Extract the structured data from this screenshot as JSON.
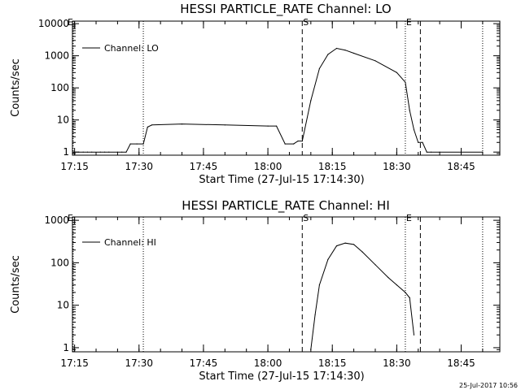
{
  "chart_data": [
    {
      "type": "line",
      "title": "HESSI PARTICLE_RATE Channel: LO",
      "xlabel": "Start Time (27-Jul-15 17:14:30)",
      "ylabel": "Counts/sec",
      "y_scale": "log",
      "xlim": [
        "17:14:30",
        "18:54:00"
      ],
      "ylim": [
        0.8,
        12000
      ],
      "x_ticks": [
        "17:15",
        "17:30",
        "17:45",
        "18:00",
        "18:15",
        "18:30",
        "18:45"
      ],
      "y_ticks": [
        "1",
        "10",
        "100",
        "1000",
        "10000"
      ],
      "legend": {
        "position": "top-left",
        "entries": [
          "Channel: LO"
        ]
      },
      "markers": [
        {
          "label": "S",
          "time": "18:08",
          "style": "dashed"
        },
        {
          "label": "E",
          "time": "18:32",
          "style": "dotted"
        }
      ],
      "extra_lines": [
        {
          "time": "17:14:40",
          "style": "dotted"
        },
        {
          "time": "17:31",
          "style": "dotted"
        },
        {
          "time": "18:35:30",
          "style": "dashed"
        },
        {
          "time": "18:50",
          "style": "dotted"
        }
      ],
      "series": [
        {
          "name": "Channel: LO",
          "x": [
            "17:14:40",
            "17:16",
            "17:17",
            "17:18",
            "17:19",
            "17:21",
            "17:22",
            "17:23",
            "17:25",
            "17:26",
            "17:27",
            "17:28",
            "17:29:30",
            "17:31",
            "17:32",
            "17:33",
            "17:40",
            "17:50",
            "18:00",
            "18:02",
            "18:04",
            "18:06",
            "18:07",
            "18:08",
            "18:10",
            "18:12",
            "18:14",
            "18:16",
            "18:18",
            "18:20",
            "18:25",
            "18:30",
            "18:32",
            "18:33",
            "18:34",
            "18:35",
            "18:36",
            "18:37",
            "18:38",
            "18:40",
            "18:45",
            "18:50"
          ],
          "y": [
            1,
            1,
            1,
            1,
            1,
            1,
            1,
            1,
            1,
            1,
            1,
            1.8,
            1.8,
            1.8,
            6,
            7,
            7.5,
            7,
            6.5,
            6.5,
            1.8,
            1.8,
            2.2,
            2.2,
            40,
            400,
            1100,
            1700,
            1500,
            1200,
            700,
            300,
            150,
            20,
            5,
            2,
            2,
            1,
            1,
            1,
            1,
            1
          ]
        }
      ]
    },
    {
      "type": "line",
      "title": "HESSI PARTICLE_RATE Channel: HI",
      "xlabel": "Start Time (27-Jul-15 17:14:30)",
      "ylabel": "Counts/sec",
      "y_scale": "log",
      "xlim": [
        "17:14:30",
        "18:54:00"
      ],
      "ylim": [
        0.8,
        1200
      ],
      "x_ticks": [
        "17:15",
        "17:30",
        "17:45",
        "18:00",
        "18:15",
        "18:30",
        "18:45"
      ],
      "y_ticks": [
        "1",
        "10",
        "100",
        "1000"
      ],
      "legend": {
        "position": "top-left",
        "entries": [
          "Channel: HI"
        ]
      },
      "markers": [
        {
          "label": "S",
          "time": "18:08",
          "style": "dashed"
        },
        {
          "label": "E",
          "time": "18:32",
          "style": "dotted"
        }
      ],
      "extra_lines": [
        {
          "time": "17:14:40",
          "style": "dotted"
        },
        {
          "time": "17:31",
          "style": "dotted"
        },
        {
          "time": "18:35:30",
          "style": "dashed"
        },
        {
          "time": "18:50",
          "style": "dotted"
        }
      ],
      "series": [
        {
          "name": "Channel: HI",
          "x": [
            "18:10",
            "18:11",
            "18:12",
            "18:14",
            "18:16",
            "18:18",
            "18:20",
            "18:22",
            "18:25",
            "18:28",
            "18:30",
            "18:32",
            "18:33",
            "18:34"
          ],
          "y": [
            0.9,
            6,
            30,
            120,
            250,
            290,
            270,
            180,
            90,
            45,
            30,
            20,
            15,
            2
          ]
        }
      ]
    }
  ],
  "footer": {
    "timestamp": "25-Jul-2017 10:56"
  }
}
